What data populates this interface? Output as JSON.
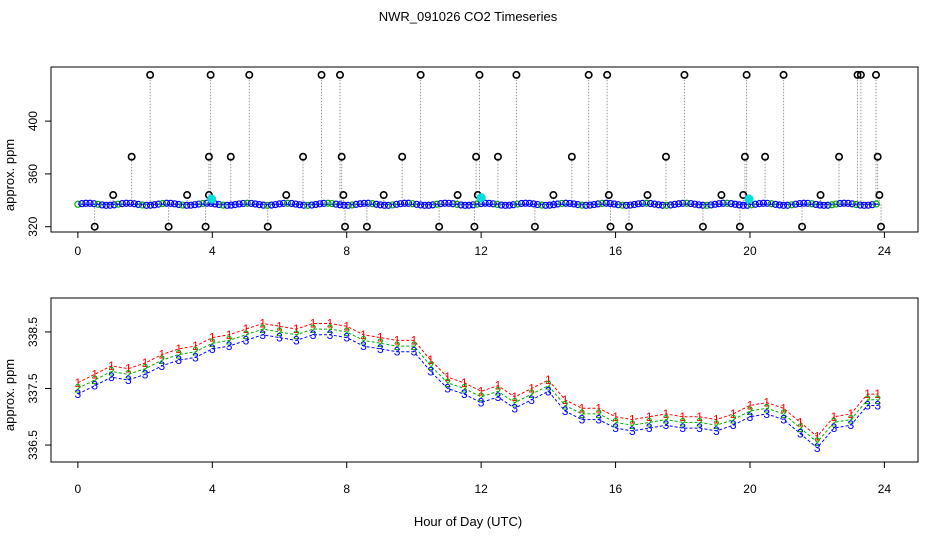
{
  "title": "NWR_091026  CO2 Timeseries",
  "xlabel": "Hour of Day (UTC)",
  "colors": {
    "series1": "#ff0000",
    "series2": "#00aa00",
    "series3": "#0000ff",
    "flagged": "#000000",
    "highlight": "#00dddd",
    "line": "#999999"
  },
  "chart_data": [
    {
      "type": "scatter",
      "name": "top-panel",
      "ylabel": "approx. ppm",
      "xlim": [
        -0.8,
        25
      ],
      "ylim": [
        316,
        441
      ],
      "xticks": [
        0,
        4,
        8,
        12,
        16,
        20,
        24
      ],
      "yticks": [
        320,
        360,
        400
      ],
      "baseline_y": 337,
      "outliers": [
        {
          "x": 0.5,
          "y": 320
        },
        {
          "x": 1.05,
          "y": 344
        },
        {
          "x": 1.6,
          "y": 373
        },
        {
          "x": 2.15,
          "y": 435
        },
        {
          "x": 2.7,
          "y": 320
        },
        {
          "x": 3.25,
          "y": 344
        },
        {
          "x": 3.8,
          "y": 320
        },
        {
          "x": 3.9,
          "y": 344
        },
        {
          "x": 3.9,
          "y": 373
        },
        {
          "x": 3.95,
          "y": 435
        },
        {
          "x": 4.55,
          "y": 373
        },
        {
          "x": 5.1,
          "y": 435
        },
        {
          "x": 5.65,
          "y": 320
        },
        {
          "x": 6.2,
          "y": 344
        },
        {
          "x": 6.7,
          "y": 373
        },
        {
          "x": 7.25,
          "y": 435
        },
        {
          "x": 7.8,
          "y": 435
        },
        {
          "x": 7.85,
          "y": 373
        },
        {
          "x": 7.9,
          "y": 344
        },
        {
          "x": 7.95,
          "y": 320
        },
        {
          "x": 8.6,
          "y": 320
        },
        {
          "x": 9.1,
          "y": 344
        },
        {
          "x": 9.65,
          "y": 373
        },
        {
          "x": 10.2,
          "y": 435
        },
        {
          "x": 10.75,
          "y": 320
        },
        {
          "x": 11.3,
          "y": 344
        },
        {
          "x": 11.8,
          "y": 320
        },
        {
          "x": 11.85,
          "y": 373
        },
        {
          "x": 11.9,
          "y": 344
        },
        {
          "x": 11.95,
          "y": 435
        },
        {
          "x": 12.5,
          "y": 373
        },
        {
          "x": 13.05,
          "y": 435
        },
        {
          "x": 13.6,
          "y": 320
        },
        {
          "x": 14.15,
          "y": 344
        },
        {
          "x": 14.7,
          "y": 373
        },
        {
          "x": 15.2,
          "y": 435
        },
        {
          "x": 15.75,
          "y": 435
        },
        {
          "x": 15.8,
          "y": 344
        },
        {
          "x": 15.85,
          "y": 320
        },
        {
          "x": 16.4,
          "y": 320
        },
        {
          "x": 16.95,
          "y": 344
        },
        {
          "x": 17.5,
          "y": 373
        },
        {
          "x": 18.05,
          "y": 435
        },
        {
          "x": 18.6,
          "y": 320
        },
        {
          "x": 19.15,
          "y": 344
        },
        {
          "x": 19.7,
          "y": 320
        },
        {
          "x": 19.8,
          "y": 344
        },
        {
          "x": 19.85,
          "y": 373
        },
        {
          "x": 19.9,
          "y": 435
        },
        {
          "x": 20.45,
          "y": 373
        },
        {
          "x": 21.0,
          "y": 435
        },
        {
          "x": 21.55,
          "y": 320
        },
        {
          "x": 22.1,
          "y": 344
        },
        {
          "x": 22.65,
          "y": 373
        },
        {
          "x": 23.2,
          "y": 435
        },
        {
          "x": 23.3,
          "y": 435
        },
        {
          "x": 23.75,
          "y": 435
        },
        {
          "x": 23.8,
          "y": 373
        },
        {
          "x": 23.85,
          "y": 344
        },
        {
          "x": 23.9,
          "y": 320
        }
      ],
      "highlights": [
        {
          "x": 3.98,
          "y": 341
        },
        {
          "x": 12.0,
          "y": 342
        },
        {
          "x": 19.97,
          "y": 341
        }
      ]
    },
    {
      "type": "scatter",
      "name": "bottom-panel",
      "ylabel": "approx. ppm",
      "xlim": [
        -0.8,
        25
      ],
      "ylim": [
        336.2,
        339.1
      ],
      "xticks": [
        0,
        4,
        8,
        12,
        16,
        20,
        24
      ],
      "yticks": [
        336.5,
        337.5,
        338.5
      ],
      "series": [
        {
          "name": "1",
          "offset": 0.2
        },
        {
          "name": "2",
          "offset": 0.1
        },
        {
          "name": "3",
          "offset": 0.0
        }
      ],
      "x": [
        0.0,
        0.5,
        1.0,
        1.5,
        2.0,
        2.5,
        3.0,
        3.5,
        4.0,
        4.5,
        5.0,
        5.5,
        6.0,
        6.5,
        7.0,
        7.5,
        8.0,
        8.5,
        9.0,
        9.5,
        10.0,
        10.5,
        11.0,
        11.5,
        12.0,
        12.5,
        13.0,
        13.5,
        14.0,
        14.5,
        15.0,
        15.5,
        16.0,
        16.5,
        17.0,
        17.5,
        18.0,
        18.5,
        19.0,
        19.5,
        20.0,
        20.5,
        21.0,
        21.5,
        22.0,
        22.5,
        23.0,
        23.5,
        23.8
      ],
      "values": [
        337.4,
        337.55,
        337.7,
        337.65,
        337.75,
        337.9,
        338.0,
        338.05,
        338.2,
        338.25,
        338.35,
        338.45,
        338.4,
        338.35,
        338.45,
        338.45,
        338.4,
        338.25,
        338.2,
        338.15,
        338.15,
        337.8,
        337.5,
        337.4,
        337.25,
        337.35,
        337.15,
        337.3,
        337.45,
        337.1,
        336.95,
        336.95,
        336.8,
        336.75,
        336.8,
        336.85,
        336.8,
        336.8,
        336.75,
        336.85,
        337.0,
        337.05,
        336.95,
        336.7,
        336.45,
        336.8,
        336.85,
        337.2,
        337.2
      ]
    }
  ]
}
